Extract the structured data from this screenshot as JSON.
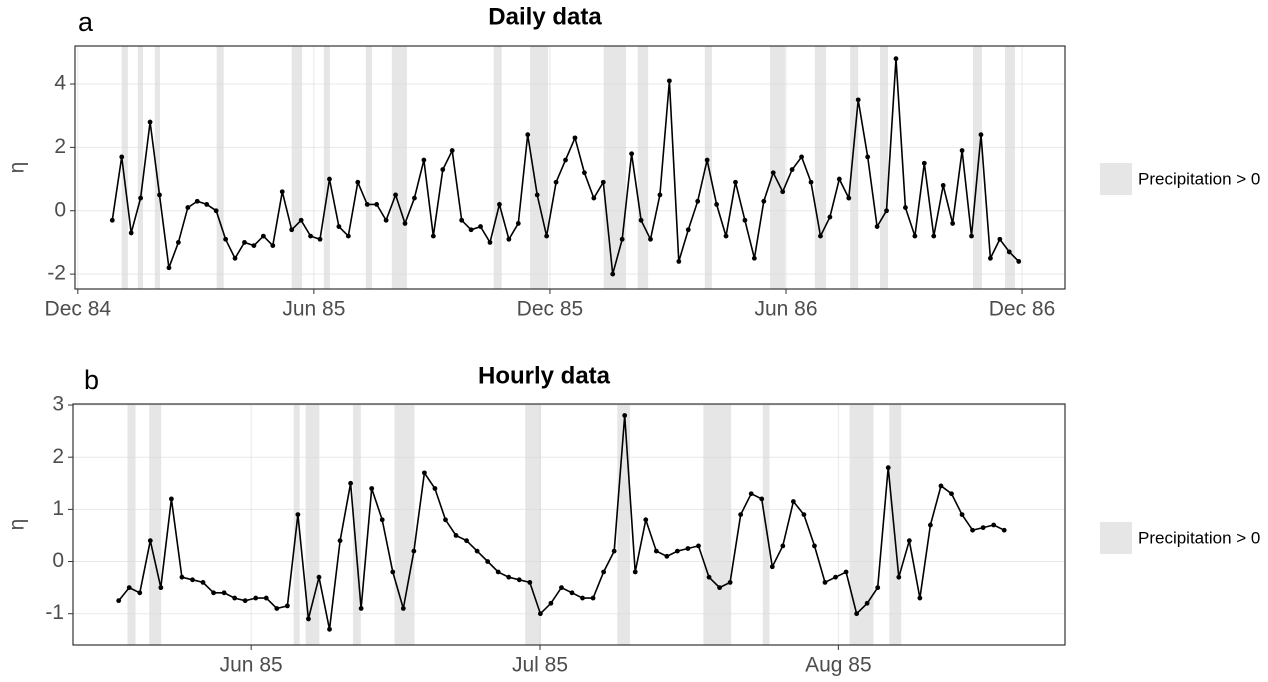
{
  "chart_data": [
    {
      "type": "line",
      "panel_label": "a",
      "title": "Daily data",
      "ylabel": "η",
      "color": "#000000",
      "grid": true,
      "xlim": [
        1984.911,
        1987.008
      ],
      "xticks": [
        {
          "value": 1984.917,
          "label": "Dec 84"
        },
        {
          "value": 1985.417,
          "label": "Jun 85"
        },
        {
          "value": 1985.917,
          "label": "Dec 85"
        },
        {
          "value": 1986.417,
          "label": "Jun 86"
        },
        {
          "value": 1986.917,
          "label": "Dec 86"
        }
      ],
      "ylim": [
        -2.47,
        5.2
      ],
      "yticks": [
        -2,
        0,
        2,
        4
      ],
      "x": [
        1984.99,
        1985.01,
        1985.03,
        1985.05,
        1985.07,
        1985.09,
        1985.11,
        1985.13,
        1985.15,
        1985.17,
        1985.19,
        1985.21,
        1985.23,
        1985.25,
        1985.27,
        1985.29,
        1985.31,
        1985.33,
        1985.35,
        1985.37,
        1985.39,
        1985.41,
        1985.43,
        1985.45,
        1985.47,
        1985.49,
        1985.51,
        1985.53,
        1985.55,
        1985.57,
        1985.59,
        1985.61,
        1985.63,
        1985.65,
        1985.67,
        1985.69,
        1985.71,
        1985.73,
        1985.75,
        1985.77,
        1985.79,
        1985.81,
        1985.83,
        1985.85,
        1985.87,
        1985.89,
        1985.91,
        1985.93,
        1985.95,
        1985.97,
        1985.99,
        1986.01,
        1986.03,
        1986.05,
        1986.07,
        1986.09,
        1986.11,
        1986.13,
        1986.15,
        1986.17,
        1986.19,
        1986.21,
        1986.23,
        1986.25,
        1986.27,
        1986.29,
        1986.31,
        1986.33,
        1986.35,
        1986.37,
        1986.39,
        1986.41,
        1986.43,
        1986.45,
        1986.47,
        1986.49,
        1986.51,
        1986.53,
        1986.55,
        1986.57,
        1986.59,
        1986.61,
        1986.63,
        1986.65,
        1986.67,
        1986.69,
        1986.71,
        1986.73,
        1986.75,
        1986.77,
        1986.79,
        1986.81,
        1986.83,
        1986.85,
        1986.87,
        1986.89,
        1986.91
      ],
      "values": [
        -0.3,
        1.7,
        -0.7,
        0.4,
        2.8,
        0.5,
        -1.8,
        -1.0,
        0.1,
        0.3,
        0.2,
        0.0,
        -0.9,
        -1.5,
        -1.0,
        -1.1,
        -0.8,
        -1.1,
        0.6,
        -0.6,
        -0.3,
        -0.8,
        -0.9,
        1.0,
        -0.5,
        -0.8,
        0.9,
        0.2,
        0.2,
        -0.3,
        0.5,
        -0.4,
        0.4,
        1.6,
        -0.8,
        1.3,
        1.9,
        -0.3,
        -0.6,
        -0.5,
        -1.0,
        0.2,
        -0.9,
        -0.4,
        2.4,
        0.5,
        -0.8,
        0.9,
        1.6,
        2.3,
        1.2,
        0.4,
        0.9,
        -2.0,
        -0.9,
        1.8,
        -0.3,
        -0.9,
        0.5,
        4.1,
        -1.6,
        -0.6,
        0.3,
        1.6,
        0.2,
        -0.8,
        0.9,
        -0.3,
        -1.5,
        0.3,
        1.2,
        0.6,
        1.3,
        1.7,
        0.9,
        -0.8,
        -0.2,
        1.0,
        0.4,
        3.5,
        1.7,
        -0.5,
        0.0,
        4.8,
        0.1,
        -0.8,
        1.5,
        -0.8,
        0.8,
        -0.4,
        1.9,
        -0.8,
        2.4,
        -1.5,
        -0.9,
        -1.3,
        -1.6
      ],
      "shaded_regions": {
        "name": "Precipitation > 0",
        "color": "#e6e6e6",
        "intervals": [
          [
            1985.01,
            1985.023
          ],
          [
            1985.044,
            1985.055
          ],
          [
            1985.08,
            1985.091
          ],
          [
            1985.211,
            1985.226
          ],
          [
            1985.37,
            1985.392
          ],
          [
            1985.438,
            1985.451
          ],
          [
            1985.527,
            1985.54
          ],
          [
            1985.582,
            1985.614
          ],
          [
            1985.798,
            1985.815
          ],
          [
            1985.875,
            1985.913
          ],
          [
            1986.031,
            1986.078
          ],
          [
            1986.103,
            1986.125
          ],
          [
            1986.245,
            1986.26
          ],
          [
            1986.383,
            1986.415
          ],
          [
            1986.478,
            1986.502
          ],
          [
            1986.553,
            1986.57
          ],
          [
            1986.616,
            1986.633
          ],
          [
            1986.813,
            1986.832
          ],
          [
            1986.881,
            1986.902
          ]
        ]
      }
    },
    {
      "type": "line",
      "panel_label": "b",
      "title": "Hourly data",
      "ylabel": "η",
      "color": "#000000",
      "grid": true,
      "xlim": [
        1985.363,
        1985.6453
      ],
      "xticks": [
        {
          "value": 1985.4137,
          "label": "Jun 85"
        },
        {
          "value": 1985.4959,
          "label": "Jul 85"
        },
        {
          "value": 1985.5808,
          "label": "Aug 85"
        }
      ],
      "ylim": [
        -1.6,
        3.02
      ],
      "yticks": [
        -1,
        0,
        1,
        2,
        3
      ],
      "x": [
        1985.376,
        1985.379,
        1985.382,
        1985.385,
        1985.388,
        1985.391,
        1985.394,
        1985.397,
        1985.4,
        1985.403,
        1985.406,
        1985.409,
        1985.412,
        1985.415,
        1985.418,
        1985.421,
        1985.424,
        1985.427,
        1985.43,
        1985.433,
        1985.436,
        1985.439,
        1985.442,
        1985.445,
        1985.448,
        1985.451,
        1985.454,
        1985.457,
        1985.46,
        1985.463,
        1985.466,
        1985.469,
        1985.472,
        1985.475,
        1985.478,
        1985.481,
        1985.484,
        1985.487,
        1985.49,
        1985.493,
        1985.496,
        1985.499,
        1985.502,
        1985.505,
        1985.508,
        1985.511,
        1985.514,
        1985.517,
        1985.52,
        1985.523,
        1985.526,
        1985.529,
        1985.532,
        1985.535,
        1985.538,
        1985.541,
        1985.544,
        1985.547,
        1985.55,
        1985.553,
        1985.556,
        1985.559,
        1985.562,
        1985.565,
        1985.568,
        1985.571,
        1985.574,
        1985.577,
        1985.58,
        1985.583,
        1985.586,
        1985.589,
        1985.592,
        1985.595,
        1985.598,
        1985.601,
        1985.604,
        1985.607,
        1985.61,
        1985.613,
        1985.616,
        1985.619,
        1985.622,
        1985.625,
        1985.628
      ],
      "values": [
        -0.75,
        -0.5,
        -0.6,
        0.4,
        -0.5,
        1.2,
        -0.3,
        -0.35,
        -0.4,
        -0.6,
        -0.6,
        -0.7,
        -0.75,
        -0.7,
        -0.7,
        -0.9,
        -0.85,
        0.9,
        -1.1,
        -0.3,
        -1.3,
        0.4,
        1.5,
        -0.9,
        1.4,
        0.8,
        -0.2,
        -0.9,
        0.2,
        1.7,
        1.4,
        0.8,
        0.5,
        0.4,
        0.2,
        0.0,
        -0.2,
        -0.3,
        -0.35,
        -0.4,
        -1.0,
        -0.8,
        -0.5,
        -0.6,
        -0.7,
        -0.7,
        -0.2,
        0.2,
        2.8,
        -0.2,
        0.8,
        0.2,
        0.1,
        0.2,
        0.25,
        0.3,
        -0.3,
        -0.5,
        -0.4,
        0.9,
        1.3,
        1.2,
        -0.1,
        0.3,
        1.15,
        0.9,
        0.3,
        -0.4,
        -0.3,
        -0.2,
        -1.0,
        -0.8,
        -0.5,
        1.8,
        -0.3,
        0.4,
        -0.7,
        0.7,
        1.45,
        1.3,
        0.9,
        0.6,
        0.65,
        0.7,
        0.6
      ],
      "shaded_regions": {
        "name": "Precipitation > 0",
        "color": "#e6e6e6",
        "intervals": [
          [
            1985.3785,
            1985.3808
          ],
          [
            1985.3847,
            1985.3881
          ],
          [
            1985.4258,
            1985.4275
          ],
          [
            1985.4292,
            1985.4331
          ],
          [
            1985.4427,
            1985.4449
          ],
          [
            1985.4545,
            1985.4602
          ],
          [
            1985.4917,
            1985.4962
          ],
          [
            1985.5179,
            1985.5215
          ],
          [
            1985.5424,
            1985.5503
          ],
          [
            1985.5593,
            1985.5612
          ],
          [
            1985.584,
            1985.5908
          ],
          [
            1985.5953,
            1985.5987
          ]
        ]
      }
    }
  ]
}
